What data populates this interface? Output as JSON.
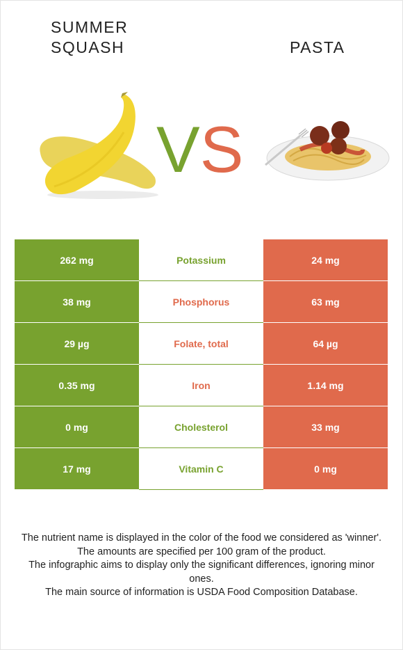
{
  "header": {
    "left_food": "SUMMER SQUASH",
    "right_food": "PASTA",
    "vs_v": "V",
    "vs_s": "S"
  },
  "colors": {
    "left": "#78a22f",
    "right": "#e06a4c"
  },
  "rows": [
    {
      "left": "262 mg",
      "nutrient": "Potassium",
      "right": "24 mg",
      "winner": "left"
    },
    {
      "left": "38 mg",
      "nutrient": "Phosphorus",
      "right": "63 mg",
      "winner": "right"
    },
    {
      "left": "29 µg",
      "nutrient": "Folate, total",
      "right": "64 µg",
      "winner": "right"
    },
    {
      "left": "0.35 mg",
      "nutrient": "Iron",
      "right": "1.14 mg",
      "winner": "right"
    },
    {
      "left": "0 mg",
      "nutrient": "Cholesterol",
      "right": "33 mg",
      "winner": "left"
    },
    {
      "left": "17 mg",
      "nutrient": "Vitamin C",
      "right": "0 mg",
      "winner": "left"
    }
  ],
  "notes": [
    "The nutrient name is displayed in the color of the food we considered as 'winner'.",
    "The amounts are specified per 100 gram of the product.",
    "The infographic aims to display only the significant differences, ignoring minor ones.",
    "The main source of information is USDA Food Composition Database."
  ]
}
